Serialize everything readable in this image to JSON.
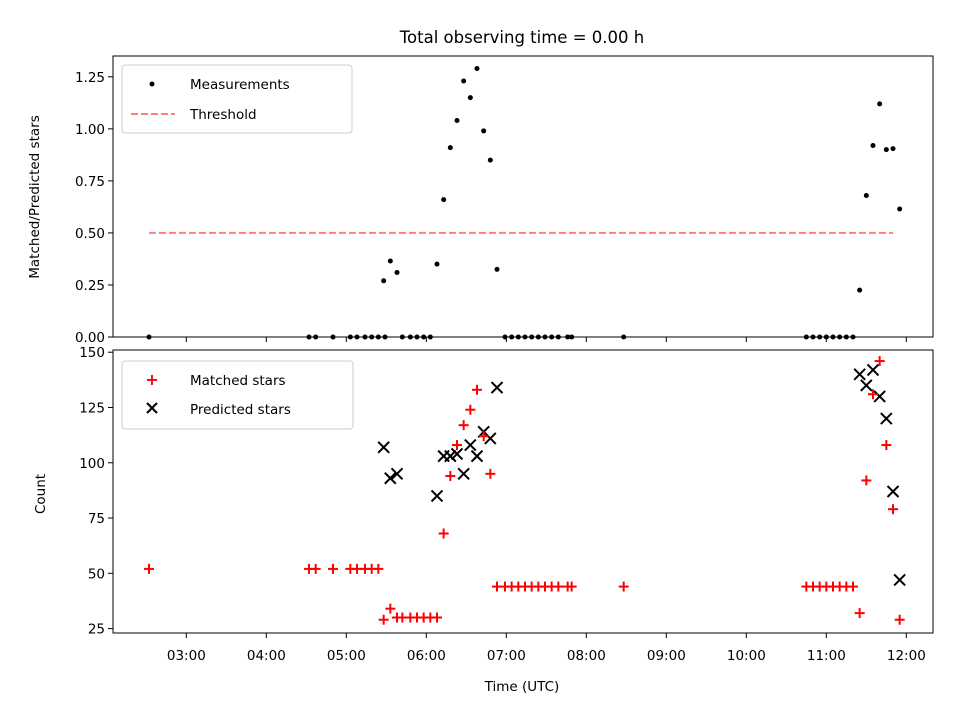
{
  "chart_data": [
    {
      "type": "scatter",
      "title": "Total observing time = 0.00 h",
      "ylabel": "Matched/Predicted stars",
      "xlim": [
        "02:05",
        "12:20"
      ],
      "ylim": [
        0,
        1.35
      ],
      "yticks": [
        "0.00",
        "0.25",
        "0.50",
        "0.75",
        "1.00",
        "1.25"
      ],
      "grid": false,
      "legend": "top-left",
      "series": [
        {
          "name": "Measurements",
          "marker": "dot",
          "color": "#000000",
          "points": [
            [
              "02:32",
              0.0
            ],
            [
              "04:32",
              0.0
            ],
            [
              "04:37",
              0.0
            ],
            [
              "04:50",
              0.0
            ],
            [
              "05:03",
              0.0
            ],
            [
              "05:08",
              0.0
            ],
            [
              "05:14",
              0.0
            ],
            [
              "05:19",
              0.0
            ],
            [
              "05:24",
              0.0
            ],
            [
              "05:29",
              0.0
            ],
            [
              "05:28",
              0.27
            ],
            [
              "05:33",
              0.365
            ],
            [
              "05:38",
              0.31
            ],
            [
              "05:42",
              0.0
            ],
            [
              "05:48",
              0.0
            ],
            [
              "05:53",
              0.0
            ],
            [
              "05:58",
              0.0
            ],
            [
              "06:03",
              0.0
            ],
            [
              "06:08",
              0.35
            ],
            [
              "06:13",
              0.66
            ],
            [
              "06:18",
              0.91
            ],
            [
              "06:23",
              1.04
            ],
            [
              "06:28",
              1.23
            ],
            [
              "06:33",
              1.15
            ],
            [
              "06:38",
              1.29
            ],
            [
              "06:43",
              0.99
            ],
            [
              "06:48",
              0.85
            ],
            [
              "06:53",
              0.325
            ],
            [
              "06:59",
              0.0
            ],
            [
              "07:04",
              0.0
            ],
            [
              "07:09",
              0.0
            ],
            [
              "07:14",
              0.0
            ],
            [
              "07:19",
              0.0
            ],
            [
              "07:24",
              0.0
            ],
            [
              "07:29",
              0.0
            ],
            [
              "07:34",
              0.0
            ],
            [
              "07:39",
              0.0
            ],
            [
              "07:46",
              0.0
            ],
            [
              "07:49",
              0.0
            ],
            [
              "08:28",
              0.0
            ],
            [
              "10:45",
              0.0
            ],
            [
              "10:50",
              0.0
            ],
            [
              "10:55",
              0.0
            ],
            [
              "11:00",
              0.0
            ],
            [
              "11:05",
              0.0
            ],
            [
              "11:10",
              0.0
            ],
            [
              "11:15",
              0.0
            ],
            [
              "11:20",
              0.0
            ],
            [
              "11:25",
              0.225
            ],
            [
              "11:30",
              0.68
            ],
            [
              "11:35",
              0.92
            ],
            [
              "11:40",
              1.12
            ],
            [
              "11:45",
              0.9
            ],
            [
              "11:50",
              0.905
            ],
            [
              "11:55",
              0.615
            ]
          ]
        },
        {
          "name": "Threshold",
          "marker": "dashed-line",
          "color": "#ff7f7f",
          "points": [
            [
              "02:32",
              0.5
            ],
            [
              "11:50",
              0.5
            ]
          ]
        }
      ]
    },
    {
      "type": "scatter",
      "xlabel": "Time (UTC)",
      "ylabel": "Count",
      "xlim": [
        "02:05",
        "12:20"
      ],
      "ylim": [
        23,
        151
      ],
      "xticks": [
        "03:00",
        "04:00",
        "05:00",
        "06:00",
        "07:00",
        "08:00",
        "09:00",
        "10:00",
        "11:00",
        "12:00"
      ],
      "yticks": [
        "25",
        "50",
        "75",
        "100",
        "125",
        "150"
      ],
      "grid": false,
      "legend": "top-left",
      "series": [
        {
          "name": "Matched stars",
          "marker": "plus",
          "color": "#ff0000",
          "points": [
            [
              "02:32",
              52
            ],
            [
              "04:32",
              52
            ],
            [
              "04:37",
              52
            ],
            [
              "04:50",
              52
            ],
            [
              "05:03",
              52
            ],
            [
              "05:08",
              52
            ],
            [
              "05:14",
              52
            ],
            [
              "05:19",
              52
            ],
            [
              "05:24",
              52
            ],
            [
              "05:28",
              29
            ],
            [
              "05:33",
              34
            ],
            [
              "05:38",
              30
            ],
            [
              "05:42",
              30
            ],
            [
              "05:48",
              30
            ],
            [
              "05:53",
              30
            ],
            [
              "05:58",
              30
            ],
            [
              "06:03",
              30
            ],
            [
              "06:08",
              30
            ],
            [
              "06:13",
              68
            ],
            [
              "06:18",
              94
            ],
            [
              "06:23",
              108
            ],
            [
              "06:28",
              117
            ],
            [
              "06:33",
              124
            ],
            [
              "06:38",
              133
            ],
            [
              "06:43",
              112
            ],
            [
              "06:48",
              95
            ],
            [
              "06:53",
              44
            ],
            [
              "06:59",
              44
            ],
            [
              "07:04",
              44
            ],
            [
              "07:09",
              44
            ],
            [
              "07:14",
              44
            ],
            [
              "07:19",
              44
            ],
            [
              "07:24",
              44
            ],
            [
              "07:29",
              44
            ],
            [
              "07:34",
              44
            ],
            [
              "07:39",
              44
            ],
            [
              "07:46",
              44
            ],
            [
              "07:49",
              44
            ],
            [
              "08:28",
              44
            ],
            [
              "10:45",
              44
            ],
            [
              "10:50",
              44
            ],
            [
              "10:55",
              44
            ],
            [
              "11:00",
              44
            ],
            [
              "11:05",
              44
            ],
            [
              "11:10",
              44
            ],
            [
              "11:15",
              44
            ],
            [
              "11:20",
              44
            ],
            [
              "11:25",
              32
            ],
            [
              "11:30",
              92
            ],
            [
              "11:35",
              131
            ],
            [
              "11:40",
              146
            ],
            [
              "11:45",
              108
            ],
            [
              "11:50",
              79
            ],
            [
              "11:55",
              29
            ]
          ]
        },
        {
          "name": "Predicted stars",
          "marker": "x",
          "color": "#000000",
          "points": [
            [
              "05:28",
              107
            ],
            [
              "05:33",
              93
            ],
            [
              "05:38",
              95
            ],
            [
              "06:08",
              85
            ],
            [
              "06:13",
              103
            ],
            [
              "06:18",
              103
            ],
            [
              "06:23",
              104
            ],
            [
              "06:28",
              95
            ],
            [
              "06:33",
              108
            ],
            [
              "06:38",
              103
            ],
            [
              "06:43",
              114
            ],
            [
              "06:48",
              111
            ],
            [
              "06:53",
              134
            ],
            [
              "11:25",
              140
            ],
            [
              "11:30",
              135
            ],
            [
              "11:35",
              142
            ],
            [
              "11:40",
              130
            ],
            [
              "11:45",
              120
            ],
            [
              "11:50",
              87
            ],
            [
              "11:55",
              47
            ]
          ]
        }
      ]
    }
  ]
}
